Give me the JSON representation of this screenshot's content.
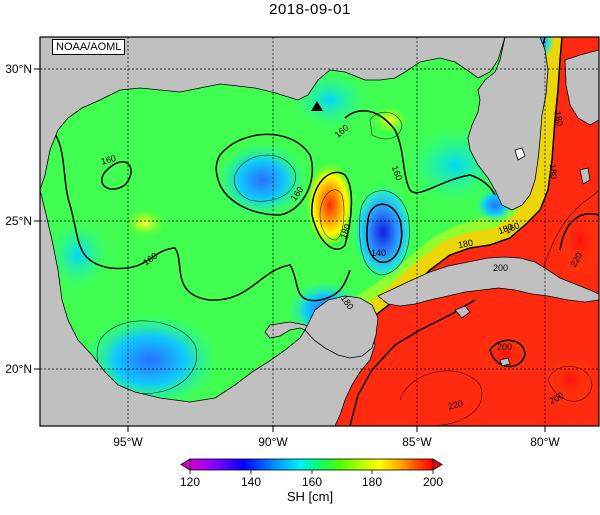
{
  "title": "2018-09-01",
  "credit": "NOAA/AOML",
  "map": {
    "lat_labels": [
      "30°N",
      "25°N",
      "20°N"
    ],
    "lon_labels": [
      "95°W",
      "90°W",
      "85°W",
      "80°W"
    ],
    "lat_ticks": [
      30,
      25,
      20
    ],
    "lon_ticks": [
      -95,
      -90,
      -85,
      -80
    ],
    "lon_range": [
      -98,
      -78
    ],
    "lat_range": [
      18,
      31
    ],
    "land_color": "#c0c0c0",
    "marker": {
      "symbol": "triangle",
      "lon": -88.3,
      "lat": 28.6
    }
  },
  "contour_labels": [
    "160",
    "160",
    "160",
    "160",
    "160",
    "180",
    "140",
    "180",
    "180",
    "180",
    "180",
    "200",
    "200",
    "220",
    "220",
    "200",
    "180",
    "160"
  ],
  "colorbar": {
    "label": "SH [cm]",
    "min": 120,
    "max": 200,
    "tick_labels": [
      "120",
      "140",
      "160",
      "180",
      "200"
    ],
    "colors": [
      "#d400d4",
      "#7a00ff",
      "#0000ff",
      "#00a0ff",
      "#00ffff",
      "#00ff80",
      "#55ff00",
      "#c8ff00",
      "#ffff00",
      "#ffb000",
      "#ff5000",
      "#ff0000"
    ]
  }
}
